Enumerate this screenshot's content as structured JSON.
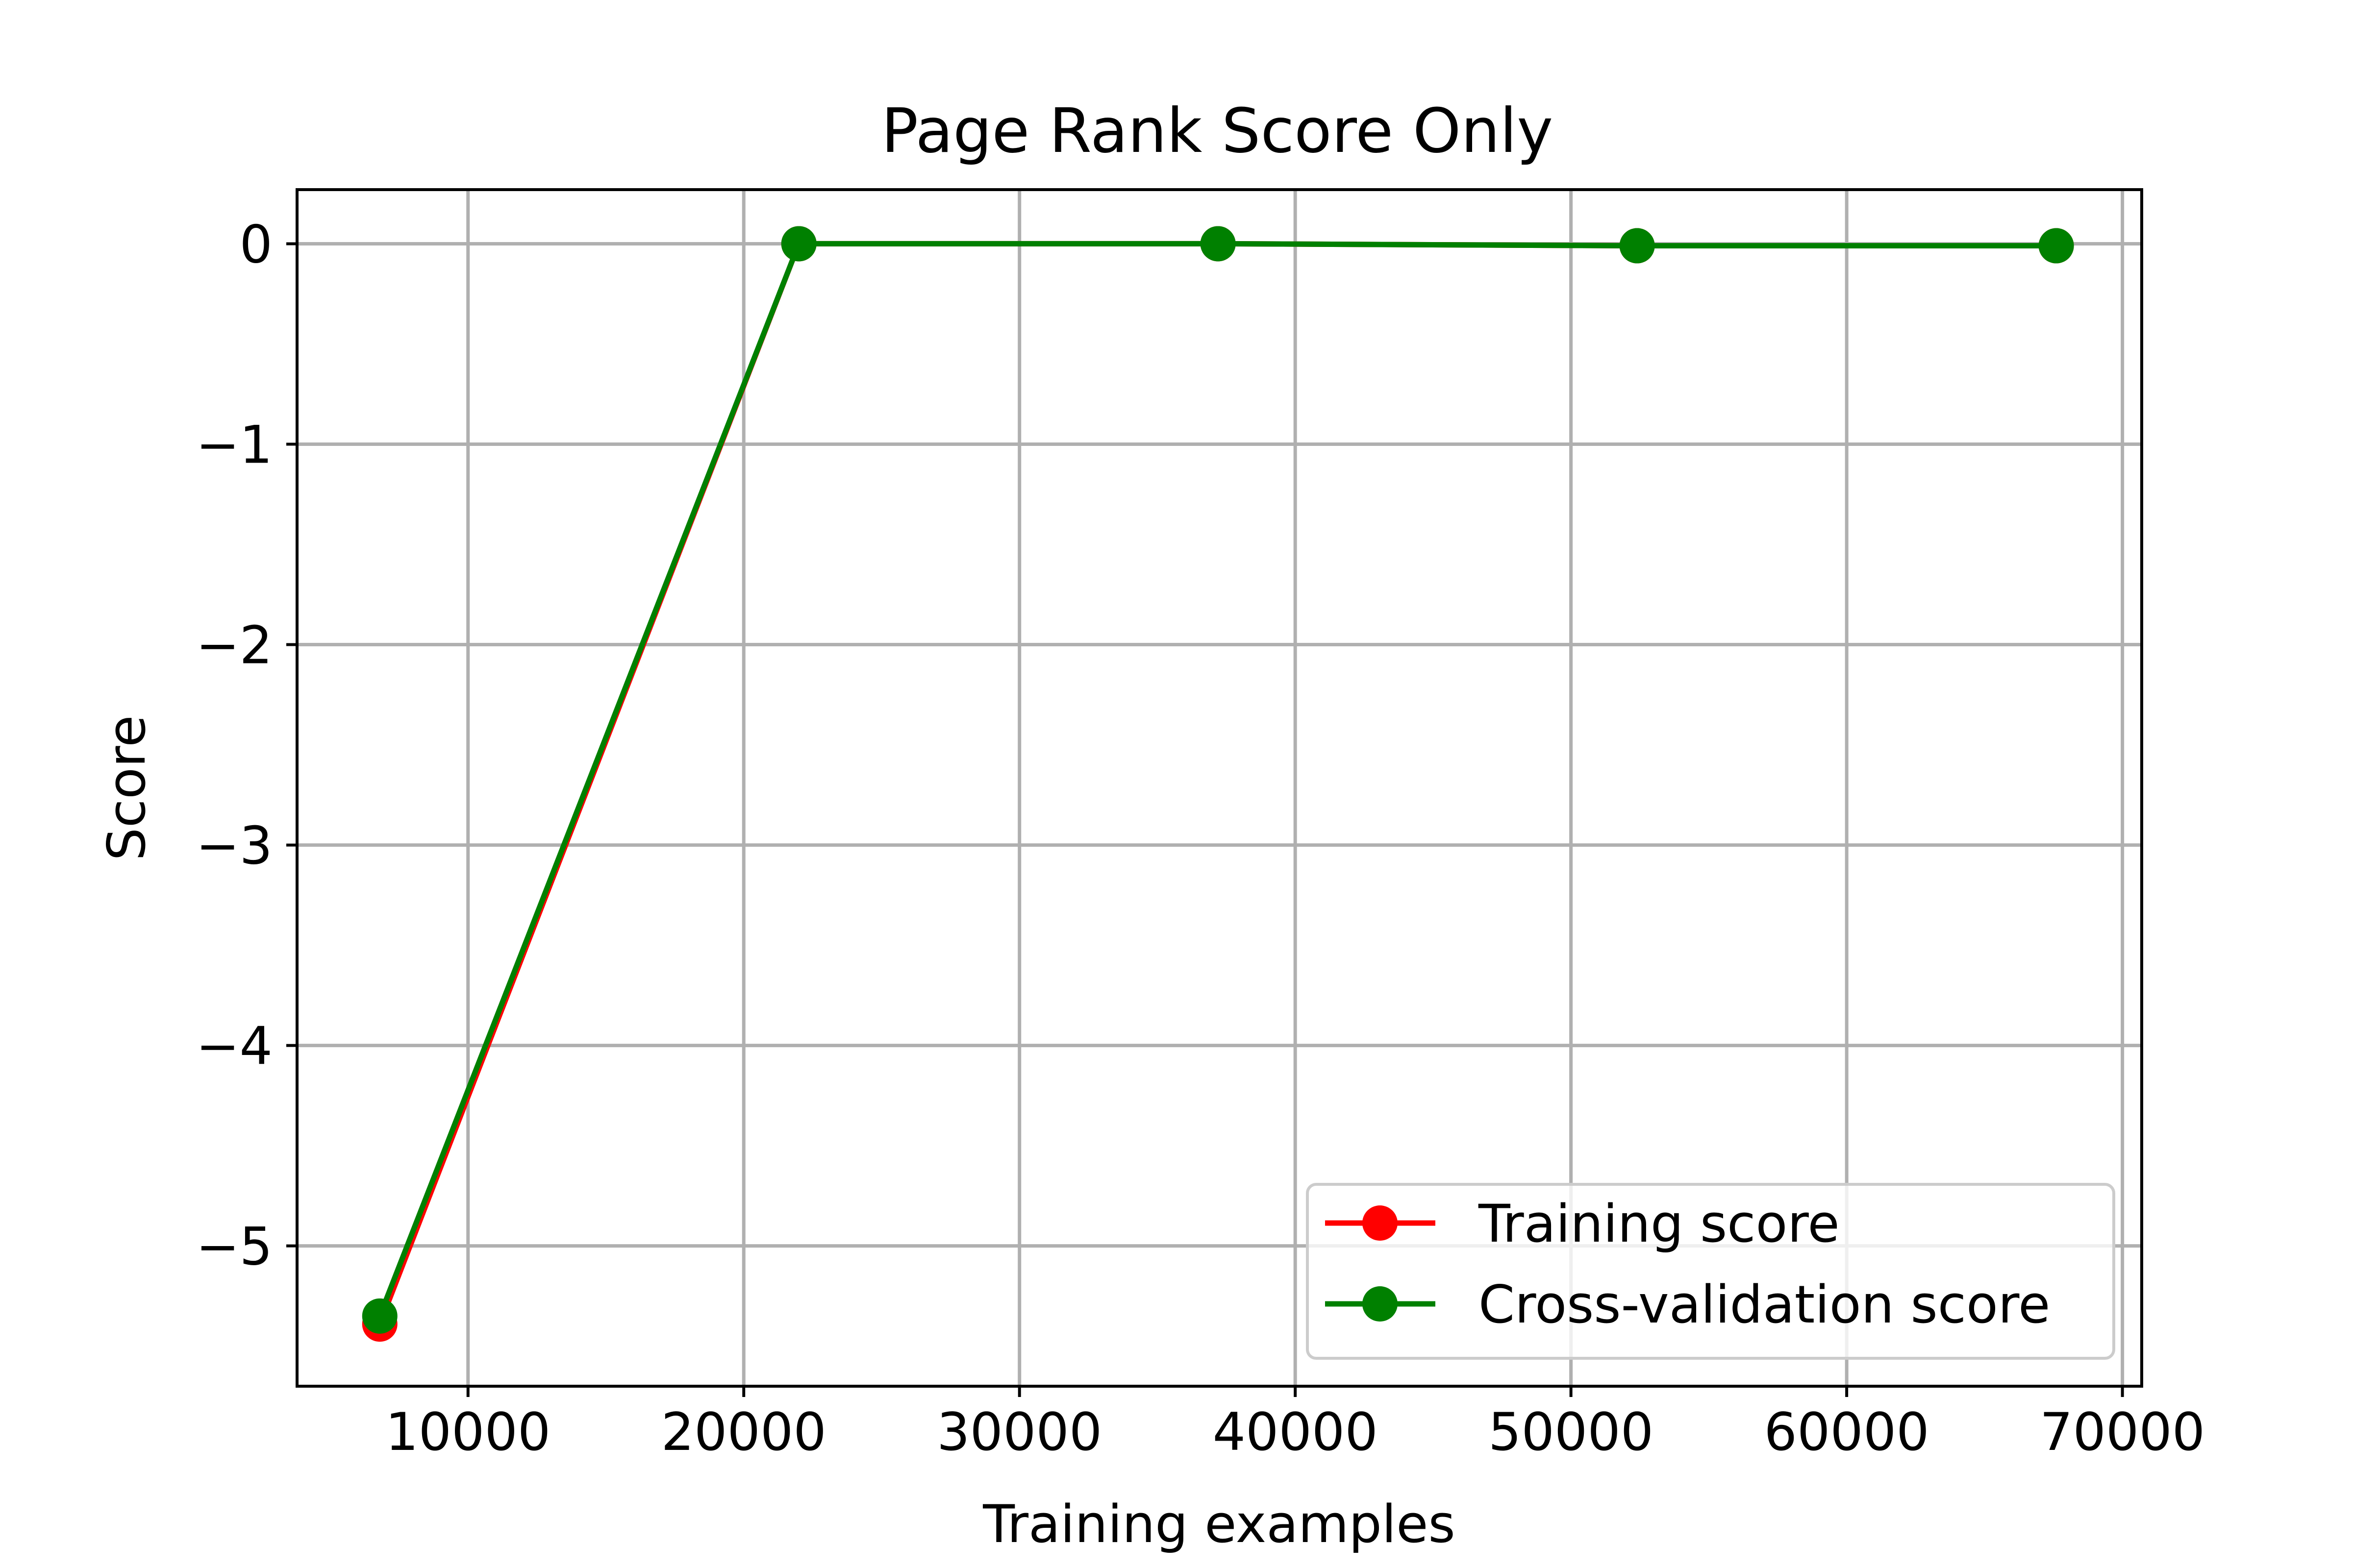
{
  "chart_data": {
    "type": "line",
    "title": "Page Rank Score Only",
    "xlabel": "Training examples",
    "ylabel": "Score",
    "xlim": [
      3800,
      70700
    ],
    "ylim": [
      -5.7,
      0.27
    ],
    "xticks": [
      10000,
      20000,
      30000,
      40000,
      50000,
      60000,
      70000
    ],
    "xtick_labels": [
      "10000",
      "20000",
      "30000",
      "40000",
      "50000",
      "60000",
      "70000"
    ],
    "yticks": [
      0,
      -1,
      -2,
      -3,
      -4,
      -5
    ],
    "ytick_labels": [
      "0",
      "−1",
      "−2",
      "−3",
      "−4",
      "−5"
    ],
    "grid": true,
    "legend_position": "lower-right",
    "series": [
      {
        "name": "Training score",
        "color": "#ff0000",
        "marker": "circle",
        "x": [
          6800,
          22000,
          37200,
          52400,
          67600
        ],
        "y": [
          -5.39,
          0.0,
          0.0,
          -0.01,
          -0.01
        ]
      },
      {
        "name": "Cross-validation score",
        "color": "#008000",
        "marker": "circle",
        "x": [
          6800,
          22000,
          37200,
          52400,
          67600
        ],
        "y": [
          -5.35,
          0.0,
          0.0,
          -0.01,
          -0.01
        ]
      }
    ]
  }
}
